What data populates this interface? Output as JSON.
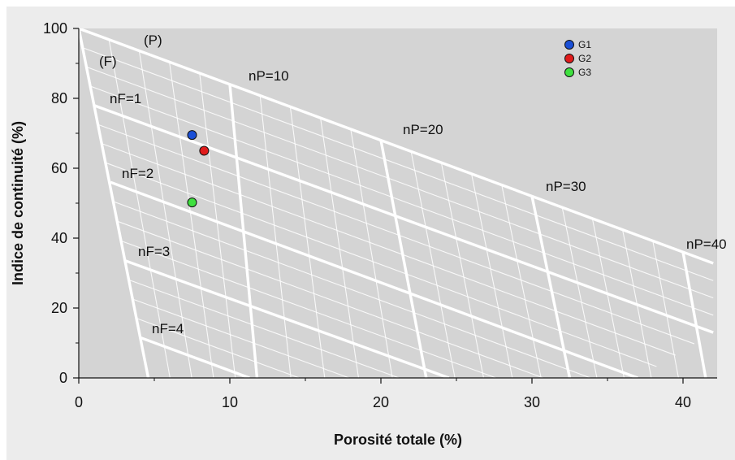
{
  "colors": {
    "frame_bg": "#ececec",
    "plot_bg": "#d4d4d4",
    "grid_major": "#ffffff",
    "grid_minor": "#ffffff",
    "axis": "#111111"
  },
  "chart_data": {
    "type": "scatter",
    "title": "",
    "xlabel": "Porosité totale (%)",
    "ylabel": "Indice de continuité (%)",
    "xlim": [
      0,
      42
    ],
    "ylim": [
      0,
      100
    ],
    "x_ticks": [
      0,
      10,
      20,
      30,
      40
    ],
    "y_ticks": [
      0,
      20,
      40,
      60,
      80,
      100
    ],
    "legend_position": "top-right",
    "grid": "nomogram",
    "series": [
      {
        "name": "G1",
        "color": "#1a4fd6",
        "points": [
          {
            "x": 7.5,
            "y": 69.5
          }
        ]
      },
      {
        "name": "G2",
        "color": "#e01b1b",
        "points": [
          {
            "x": 8.3,
            "y": 65.0
          }
        ]
      },
      {
        "name": "G3",
        "color": "#3fe03f",
        "points": [
          {
            "x": 7.5,
            "y": 50.2
          }
        ]
      }
    ],
    "nomogram": {
      "origin": {
        "x": 0,
        "y": 100
      },
      "p_lines": [
        {
          "label": "nP=10",
          "top": {
            "x": 10.0,
            "y": 84
          },
          "bottom": {
            "x": 11.8,
            "y": 0
          }
        },
        {
          "label": "nP=20",
          "top": {
            "x": 20.0,
            "y": 68
          },
          "bottom": {
            "x": 23.0,
            "y": 0
          }
        },
        {
          "label": "nP=30",
          "top": {
            "x": 30.0,
            "y": 52
          },
          "bottom": {
            "x": 32.5,
            "y": 0
          }
        },
        {
          "label": "nP=40",
          "top": {
            "x": 40.0,
            "y": 36
          },
          "bottom": {
            "x": 41.5,
            "y": 0
          }
        }
      ],
      "f_lines": [
        {
          "label": "nF=1",
          "left": {
            "x": 1.0,
            "y": 78
          },
          "right": {
            "x": 42,
            "y": 13
          }
        },
        {
          "label": "nF=2",
          "left": {
            "x": 2.1,
            "y": 56
          },
          "right": {
            "x": 37.0,
            "y": 0
          }
        },
        {
          "label": "nF=3",
          "left": {
            "x": 3.1,
            "y": 33.5
          },
          "right": {
            "x": 24.5,
            "y": 0
          }
        },
        {
          "label": "nF=4",
          "left": {
            "x": 4.1,
            "y": 11.5
          },
          "right": {
            "x": 11.3,
            "y": 0
          }
        }
      ],
      "boundary_labels": [
        "(P)",
        "(F)"
      ]
    }
  }
}
